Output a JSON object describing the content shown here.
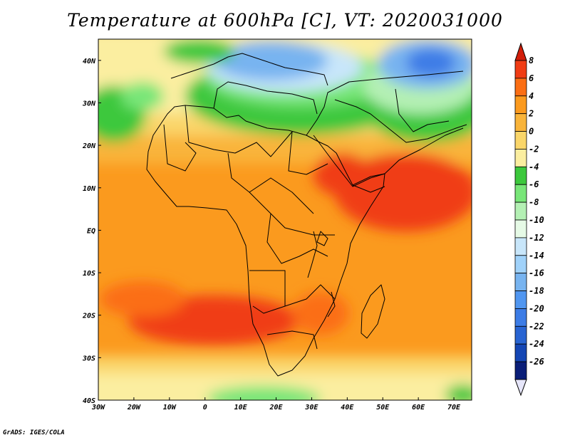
{
  "title": "Temperature at 600hPa [C], VT: 2020031000",
  "footer": "GrADS: IGES/COLA",
  "map": {
    "lon_range": [
      -30,
      75
    ],
    "lat_range": [
      -40,
      45
    ],
    "lon_ticks": [
      {
        "v": -30,
        "label": "30W"
      },
      {
        "v": -20,
        "label": "20W"
      },
      {
        "v": -10,
        "label": "10W"
      },
      {
        "v": 0,
        "label": "0"
      },
      {
        "v": 10,
        "label": "10E"
      },
      {
        "v": 20,
        "label": "20E"
      },
      {
        "v": 30,
        "label": "30E"
      },
      {
        "v": 40,
        "label": "40E"
      },
      {
        "v": 50,
        "label": "50E"
      },
      {
        "v": 60,
        "label": "60E"
      },
      {
        "v": 70,
        "label": "70E"
      }
    ],
    "lat_ticks": [
      {
        "v": 40,
        "label": "40N"
      },
      {
        "v": 30,
        "label": "30N"
      },
      {
        "v": 20,
        "label": "20N"
      },
      {
        "v": 10,
        "label": "10N"
      },
      {
        "v": 0,
        "label": "EQ"
      },
      {
        "v": -10,
        "label": "10S"
      },
      {
        "v": -20,
        "label": "20S"
      },
      {
        "v": -30,
        "label": "30S"
      },
      {
        "v": -40,
        "label": "40S"
      }
    ]
  },
  "colorbar": {
    "levels": [
      8,
      6,
      4,
      2,
      0,
      -2,
      -4,
      -6,
      -8,
      -10,
      -12,
      -14,
      -16,
      -18,
      -20,
      -22,
      -24,
      -26
    ],
    "colors": [
      "#f03c14",
      "#fb6e14",
      "#fb9a1e",
      "#f9b43a",
      "#fad66a",
      "#fbeea0",
      "#3cc83c",
      "#78e678",
      "#b4f0b4",
      "#e6fae6",
      "#c8e6fa",
      "#a0d2fa",
      "#78b4f0",
      "#5096f0",
      "#3c7ce6",
      "#2864d2",
      "#1446b4",
      "#0a1e78"
    ],
    "top_color": "#d21e0a",
    "bottom_color": "#e6e6fa"
  }
}
